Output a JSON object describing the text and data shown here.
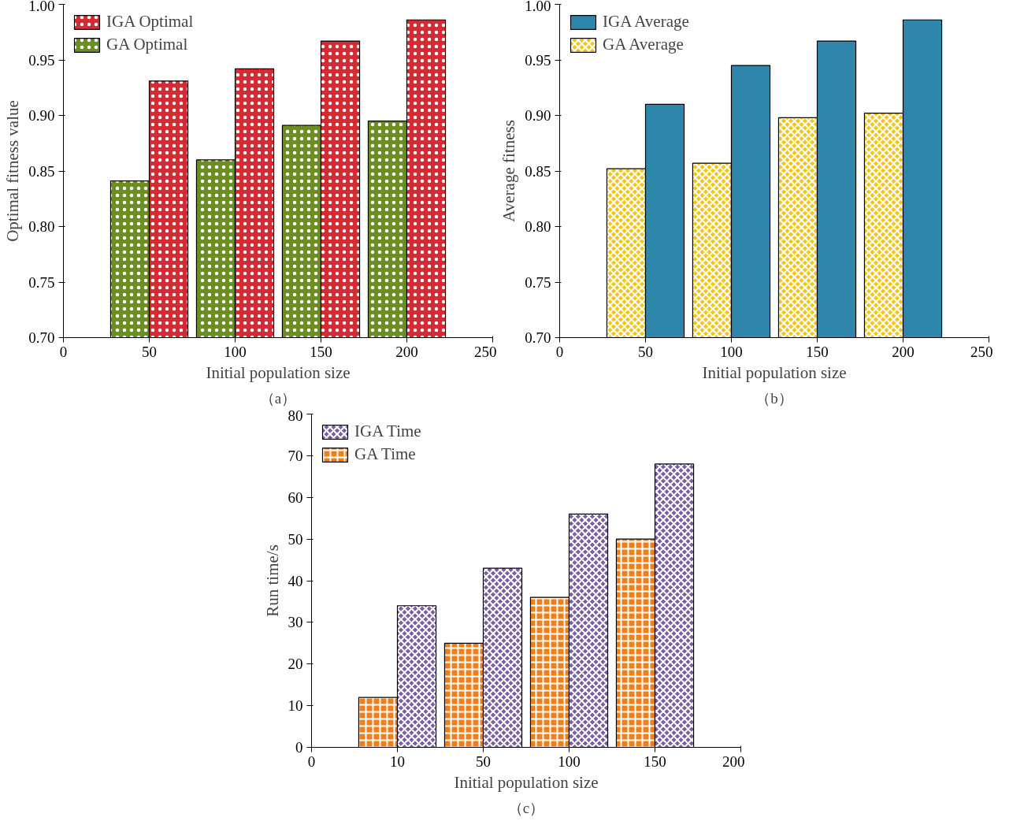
{
  "chart_data": [
    {
      "type": "bar",
      "xlabel": "Initial population size",
      "ylabel": "Optimal fitness value",
      "annotations": [
        "（a）"
      ],
      "x": [
        50,
        100,
        150,
        200
      ],
      "xlim": [
        0,
        250
      ],
      "xticks": [
        0,
        50,
        100,
        150,
        200,
        250
      ],
      "ylim": [
        0.7,
        1.0
      ],
      "yticks": [
        {
          "value": 0.7,
          "label": "0.70"
        },
        {
          "value": 0.75,
          "label": "0.75"
        },
        {
          "value": 0.8,
          "label": "0.80"
        },
        {
          "value": 0.85,
          "label": "0.85"
        },
        {
          "value": 0.9,
          "label": "0.90"
        },
        {
          "value": 0.95,
          "label": "0.95"
        },
        {
          "value": 1.0,
          "label": "1.00"
        }
      ],
      "legend": "top left",
      "series": [
        {
          "name": "GA Optimal",
          "color": "#6b8e23",
          "values": [
            0.841,
            0.86,
            0.891,
            0.895
          ]
        },
        {
          "name": "IGA Optimal",
          "color": "#d42a33",
          "values": [
            0.931,
            0.942,
            0.967,
            0.986
          ]
        }
      ]
    },
    {
      "type": "bar",
      "xlabel": "Initial population size",
      "ylabel": "Average fitness",
      "annotations": [
        "（b）"
      ],
      "x": [
        50,
        100,
        150,
        200
      ],
      "xlim": [
        0,
        250
      ],
      "xticks": [
        0,
        50,
        100,
        150,
        200,
        250
      ],
      "ylim": [
        0.7,
        1.0
      ],
      "yticks": [
        {
          "value": 0.7,
          "label": "0.70"
        },
        {
          "value": 0.75,
          "label": "0.75"
        },
        {
          "value": 0.8,
          "label": "0.80"
        },
        {
          "value": 0.85,
          "label": "0.85"
        },
        {
          "value": 0.9,
          "label": "0.90"
        },
        {
          "value": 0.95,
          "label": "0.95"
        },
        {
          "value": 1.0,
          "label": "1.00"
        }
      ],
      "legend": "top left",
      "series": [
        {
          "name": "GA Average",
          "color": "#f5c518",
          "values": [
            0.852,
            0.857,
            0.898,
            0.902
          ]
        },
        {
          "name": "IGA Average",
          "color": "#2e86ab",
          "values": [
            0.91,
            0.945,
            0.967,
            0.986
          ]
        }
      ]
    },
    {
      "type": "bar",
      "xlabel": "Initial population size",
      "ylabel": "Run time/s",
      "annotations": [
        "（c）"
      ],
      "categories": [
        "0",
        "10",
        "50",
        "100",
        "150",
        "200"
      ],
      "ylim": [
        0,
        80
      ],
      "yticks": [
        0,
        10,
        20,
        30,
        40,
        50,
        60,
        70,
        80
      ],
      "legend": "top left",
      "series": [
        {
          "name": "GA Time",
          "color": "#f07f1a",
          "values": [
            null,
            12,
            25,
            36,
            50,
            null
          ]
        },
        {
          "name": "IGA Time",
          "color": "#7b5ea7",
          "values": [
            null,
            34,
            43,
            56,
            68,
            null
          ]
        }
      ]
    }
  ]
}
